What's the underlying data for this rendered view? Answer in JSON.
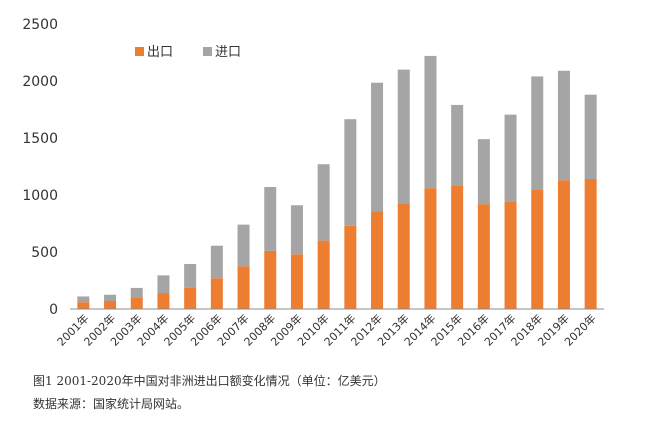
{
  "chart_data": {
    "type": "bar",
    "stacked": true,
    "categories": [
      "2001年",
      "2002年",
      "2003年",
      "2004年",
      "2005年",
      "2006年",
      "2007年",
      "2008年",
      "2009年",
      "2010年",
      "2011年",
      "2012年",
      "2013年",
      "2014年",
      "2015年",
      "2016年",
      "2017年",
      "2018年",
      "2019年",
      "2020年"
    ],
    "series": [
      {
        "name": "出口",
        "color": "#ED7D31",
        "values": [
          60,
          70,
          100,
          140,
          185,
          270,
          375,
          510,
          480,
          600,
          730,
          855,
          925,
          1060,
          1085,
          920,
          945,
          1050,
          1130,
          1140
        ]
      },
      {
        "name": "进口",
        "color": "#A5A5A5",
        "values": [
          50,
          55,
          85,
          155,
          210,
          285,
          365,
          560,
          430,
          670,
          935,
          1130,
          1175,
          1160,
          705,
          570,
          760,
          990,
          960,
          740
        ]
      }
    ],
    "ylim": [
      0,
      2500
    ],
    "yticks": [
      0,
      500,
      1000,
      1500,
      2000,
      2500
    ],
    "legend": "top-left",
    "grid": false
  },
  "captions": {
    "figure": "图1 2001-2020年中国对非洲进出口额变化情况（单位：亿美元）",
    "source": "数据来源：国家统计局网站。"
  }
}
